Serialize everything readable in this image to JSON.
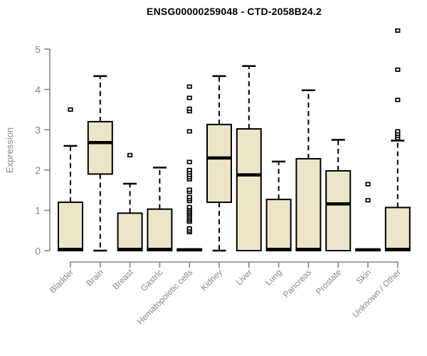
{
  "chart_data": {
    "type": "boxplot",
    "title": "ENSG00000259048 - CTD-2058B24.2",
    "ylabel": "Expression",
    "xlabel": "",
    "ylim": [
      0,
      5
    ],
    "yticks": [
      0,
      1,
      2,
      3,
      4,
      5
    ],
    "grid": false,
    "legend": "none",
    "categories": [
      "Bladder",
      "Brain",
      "Breast",
      "Gastric",
      "Hematopoietic cells",
      "Kidney",
      "Liver",
      "Lung",
      "Pancreas",
      "Prostate",
      "Skin",
      "Unknown / Other"
    ],
    "boxes": [
      {
        "category": "Bladder",
        "low": 0,
        "q1": 0,
        "median": 0.03,
        "q3": 1.2,
        "high": 2.6,
        "outliers": [
          3.5
        ]
      },
      {
        "category": "Brain",
        "low": 0,
        "q1": 1.9,
        "median": 2.68,
        "q3": 3.2,
        "high": 4.33,
        "outliers": []
      },
      {
        "category": "Breast",
        "low": 0,
        "q1": 0,
        "median": 0.03,
        "q3": 0.93,
        "high": 1.66,
        "outliers": [
          2.37
        ]
      },
      {
        "category": "Gastric",
        "low": 0,
        "q1": 0,
        "median": 0.03,
        "q3": 1.03,
        "high": 2.06,
        "outliers": []
      },
      {
        "category": "Hematopoietic cells",
        "low": 0,
        "q1": 0,
        "median": 0.02,
        "q3": 0.04,
        "high": 0.05,
        "outliers": [
          0.46,
          0.5,
          0.55,
          0.72,
          0.76,
          0.8,
          0.84,
          0.88,
          0.92,
          0.96,
          1.0,
          1.04,
          1.08,
          1.23,
          1.28,
          1.33,
          1.46,
          1.51,
          1.77,
          1.82,
          1.88,
          1.94,
          2.0,
          2.2,
          2.96,
          3.46,
          3.52,
          3.79,
          4.07
        ]
      },
      {
        "category": "Kidney",
        "low": 0,
        "q1": 1.2,
        "median": 2.3,
        "q3": 3.13,
        "high": 4.33,
        "outliers": []
      },
      {
        "category": "Liver",
        "low": 0,
        "q1": 0,
        "median": 1.88,
        "q3": 3.02,
        "high": 4.58,
        "outliers": []
      },
      {
        "category": "Lung",
        "low": 0,
        "q1": 0,
        "median": 0.03,
        "q3": 1.27,
        "high": 2.21,
        "outliers": []
      },
      {
        "category": "Pancreas",
        "low": 0,
        "q1": 0,
        "median": 0.03,
        "q3": 2.28,
        "high": 3.98,
        "outliers": []
      },
      {
        "category": "Prostate",
        "low": 0,
        "q1": 0,
        "median": 1.16,
        "q3": 1.98,
        "high": 2.75,
        "outliers": []
      },
      {
        "category": "Skin",
        "low": 0,
        "q1": 0,
        "median": 0.02,
        "q3": 0.03,
        "high": 0.04,
        "outliers": [
          1.25,
          1.65
        ]
      },
      {
        "category": "Unknown / Other",
        "low": 0,
        "q1": 0,
        "median": 0.03,
        "q3": 1.07,
        "high": 2.73,
        "outliers": [
          2.79,
          2.85,
          2.9,
          2.96,
          3.74,
          4.49,
          5.46
        ]
      }
    ]
  },
  "style": {
    "background": "#ffffff",
    "box_fill": "#ECE5C8",
    "box_stroke": "#000000",
    "median_color": "#000000",
    "whisker_color": "#000000",
    "outlier_fill": "#ffffff",
    "outlier_stroke": "#000000",
    "axis_color": "#878787",
    "axis_text": "#878787",
    "title_color": "#000000"
  }
}
